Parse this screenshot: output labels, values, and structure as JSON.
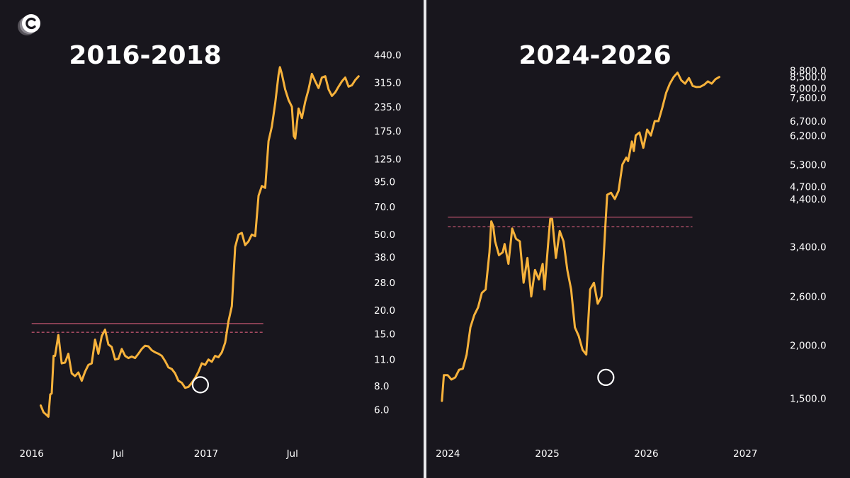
{
  "colors": {
    "background": "#18161d",
    "line": "#f7b23b",
    "resistance": "#d65d7a",
    "marker": "#ffffff"
  },
  "logo": {
    "icon": "c-logo-icon"
  },
  "chart_data": [
    {
      "type": "line",
      "title": "2016-2018",
      "y_scale": "log",
      "ylim": [
        5.2,
        470
      ],
      "y_ticks": [
        {
          "v": 440,
          "label": "440.0"
        },
        {
          "v": 315,
          "label": "315.0"
        },
        {
          "v": 235,
          "label": "235.0"
        },
        {
          "v": 175,
          "label": "175.0"
        },
        {
          "v": 125,
          "label": "125.0"
        },
        {
          "v": 95,
          "label": "95.0"
        },
        {
          "v": 70,
          "label": "70.0"
        },
        {
          "v": 50,
          "label": "50.0"
        },
        {
          "v": 38,
          "label": "38.0"
        },
        {
          "v": 28,
          "label": "28.0"
        },
        {
          "v": 20,
          "label": "20.0"
        },
        {
          "v": 15,
          "label": "15.0"
        },
        {
          "v": 11,
          "label": "11.0"
        },
        {
          "v": 8,
          "label": "8.0"
        },
        {
          "v": 6,
          "label": "6.0"
        }
      ],
      "xlim": [
        "2015-12-25",
        "2017-11-30"
      ],
      "x_ticks": [
        {
          "x": "2016-01-01",
          "label": "2016"
        },
        {
          "x": "2016-07-01",
          "label": "Jul"
        },
        {
          "x": "2017-01-01",
          "label": "2017"
        },
        {
          "x": "2017-07-01",
          "label": "Jul"
        }
      ],
      "resistance": {
        "solid": 17.0,
        "dashed": 15.3,
        "x_start": "2016-01-01",
        "x_end": "2017-05-01"
      },
      "marker": {
        "x": "2016-12-20",
        "y": 8.1
      },
      "series": [
        {
          "points": [
            [
              "2016-01-20",
              6.3
            ],
            [
              "2016-01-26",
              5.8
            ],
            [
              "2016-02-02",
              5.6
            ],
            [
              "2016-02-05",
              5.5
            ],
            [
              "2016-02-09",
              7.2
            ],
            [
              "2016-02-12",
              7.3
            ],
            [
              "2016-02-16",
              11.5
            ],
            [
              "2016-02-19",
              11.5
            ],
            [
              "2016-02-26",
              14.8
            ],
            [
              "2016-03-04",
              10.5
            ],
            [
              "2016-03-11",
              10.6
            ],
            [
              "2016-03-18",
              11.8
            ],
            [
              "2016-03-25",
              9.3
            ],
            [
              "2016-04-01",
              9.0
            ],
            [
              "2016-04-08",
              9.4
            ],
            [
              "2016-04-15",
              8.5
            ],
            [
              "2016-04-22",
              9.5
            ],
            [
              "2016-04-29",
              10.3
            ],
            [
              "2016-05-06",
              10.5
            ],
            [
              "2016-05-13",
              14.0
            ],
            [
              "2016-05-20",
              11.8
            ],
            [
              "2016-05-27",
              14.6
            ],
            [
              "2016-06-03",
              15.8
            ],
            [
              "2016-06-10",
              13.2
            ],
            [
              "2016-06-17",
              12.8
            ],
            [
              "2016-06-24",
              11.0
            ],
            [
              "2016-07-01",
              11.1
            ],
            [
              "2016-07-08",
              12.5
            ],
            [
              "2016-07-15",
              11.5
            ],
            [
              "2016-07-22",
              11.2
            ],
            [
              "2016-07-29",
              11.4
            ],
            [
              "2016-08-05",
              11.2
            ],
            [
              "2016-08-12",
              11.8
            ],
            [
              "2016-08-19",
              12.5
            ],
            [
              "2016-08-26",
              13.0
            ],
            [
              "2016-09-02",
              12.9
            ],
            [
              "2016-09-09",
              12.3
            ],
            [
              "2016-09-16",
              12.0
            ],
            [
              "2016-09-23",
              11.8
            ],
            [
              "2016-09-30",
              11.5
            ],
            [
              "2016-10-07",
              10.8
            ],
            [
              "2016-10-14",
              10.0
            ],
            [
              "2016-10-21",
              9.8
            ],
            [
              "2016-10-28",
              9.3
            ],
            [
              "2016-11-04",
              8.5
            ],
            [
              "2016-11-11",
              8.3
            ],
            [
              "2016-11-18",
              7.8
            ],
            [
              "2016-11-25",
              7.9
            ],
            [
              "2016-12-02",
              8.3
            ],
            [
              "2016-12-09",
              8.8
            ],
            [
              "2016-12-16",
              9.5
            ],
            [
              "2016-12-23",
              10.5
            ],
            [
              "2016-12-30",
              10.3
            ],
            [
              "2017-01-06",
              11.0
            ],
            [
              "2017-01-13",
              10.7
            ],
            [
              "2017-01-20",
              11.5
            ],
            [
              "2017-01-27",
              11.3
            ],
            [
              "2017-02-03",
              12.0
            ],
            [
              "2017-02-10",
              13.5
            ],
            [
              "2017-02-17",
              17.5
            ],
            [
              "2017-02-24",
              21.0
            ],
            [
              "2017-03-03",
              43.0
            ],
            [
              "2017-03-10",
              50.0
            ],
            [
              "2017-03-17",
              51.0
            ],
            [
              "2017-03-24",
              44.0
            ],
            [
              "2017-03-31",
              46.0
            ],
            [
              "2017-04-07",
              50.0
            ],
            [
              "2017-04-14",
              49.0
            ],
            [
              "2017-04-21",
              80.0
            ],
            [
              "2017-04-28",
              90.0
            ],
            [
              "2017-05-05",
              88.0
            ],
            [
              "2017-05-12",
              155.0
            ],
            [
              "2017-05-19",
              185.0
            ],
            [
              "2017-05-26",
              245.0
            ],
            [
              "2017-06-02",
              345.0
            ],
            [
              "2017-06-05",
              380.0
            ],
            [
              "2017-06-09",
              350.0
            ],
            [
              "2017-06-16",
              290.0
            ],
            [
              "2017-06-23",
              255.0
            ],
            [
              "2017-06-30",
              235.0
            ],
            [
              "2017-07-04",
              165.0
            ],
            [
              "2017-07-07",
              160.0
            ],
            [
              "2017-07-14",
              230.0
            ],
            [
              "2017-07-21",
              205.0
            ],
            [
              "2017-07-28",
              250.0
            ],
            [
              "2017-08-04",
              290.0
            ],
            [
              "2017-08-11",
              350.0
            ],
            [
              "2017-08-18",
              320.0
            ],
            [
              "2017-08-25",
              295.0
            ],
            [
              "2017-09-01",
              335.0
            ],
            [
              "2017-09-08",
              340.0
            ],
            [
              "2017-09-15",
              290.0
            ],
            [
              "2017-09-22",
              268.0
            ],
            [
              "2017-09-29",
              280.0
            ],
            [
              "2017-10-06",
              300.0
            ],
            [
              "2017-10-13",
              320.0
            ],
            [
              "2017-10-20",
              335.0
            ],
            [
              "2017-10-27",
              300.0
            ],
            [
              "2017-11-03",
              305.0
            ],
            [
              "2017-11-10",
              325.0
            ],
            [
              "2017-11-17",
              340.0
            ]
          ]
        }
      ]
    },
    {
      "type": "line",
      "title": "2024-2026",
      "y_scale": "log",
      "ylim": [
        1300,
        9200
      ],
      "y_ticks": [
        {
          "v": 8800,
          "label": "8,800.0"
        },
        {
          "v": 8500,
          "label": "8,500.0"
        },
        {
          "v": 8000,
          "label": "8,000.0"
        },
        {
          "v": 7600,
          "label": "7,600.0"
        },
        {
          "v": 6700,
          "label": "6,700.0"
        },
        {
          "v": 6200,
          "label": "6,200.0"
        },
        {
          "v": 5300,
          "label": "5,300.0"
        },
        {
          "v": 4700,
          "label": "4,700.0"
        },
        {
          "v": 4400,
          "label": "4,400.0"
        },
        {
          "v": 3400,
          "label": "3,400.0"
        },
        {
          "v": 2600,
          "label": "2,600.0"
        },
        {
          "v": 2000,
          "label": "2,000.0"
        },
        {
          "v": 1500,
          "label": "1,500.0"
        }
      ],
      "xlim": [
        "2023-12-05",
        "2027-04-20"
      ],
      "x_ticks": [
        {
          "x": "2024-01-01",
          "label": "2024"
        },
        {
          "x": "2025-01-01",
          "label": "2025"
        },
        {
          "x": "2026-01-01",
          "label": "2026"
        },
        {
          "x": "2027-01-01",
          "label": "2027"
        }
      ],
      "resistance": {
        "solid": 3990,
        "dashed": 3790,
        "x_start": "2024-01-01",
        "x_end": "2026-06-20"
      },
      "marker": {
        "x": "2025-08-05",
        "y": 1680
      },
      "series": [
        {
          "points": [
            [
              "2023-12-10",
              1480
            ],
            [
              "2023-12-17",
              1700
            ],
            [
              "2023-12-31",
              1700
            ],
            [
              "2024-01-14",
              1660
            ],
            [
              "2024-01-28",
              1680
            ],
            [
              "2024-02-11",
              1750
            ],
            [
              "2024-02-25",
              1760
            ],
            [
              "2024-03-10",
              1900
            ],
            [
              "2024-03-24",
              2200
            ],
            [
              "2024-04-07",
              2350
            ],
            [
              "2024-04-21",
              2450
            ],
            [
              "2024-05-05",
              2650
            ],
            [
              "2024-05-19",
              2700
            ],
            [
              "2024-06-02",
              3300
            ],
            [
              "2024-06-09",
              3900
            ],
            [
              "2024-06-16",
              3800
            ],
            [
              "2024-06-23",
              3500
            ],
            [
              "2024-07-07",
              3250
            ],
            [
              "2024-07-21",
              3300
            ],
            [
              "2024-07-28",
              3450
            ],
            [
              "2024-08-11",
              3100
            ],
            [
              "2024-08-25",
              3750
            ],
            [
              "2024-09-08",
              3550
            ],
            [
              "2024-09-22",
              3500
            ],
            [
              "2024-10-06",
              2800
            ],
            [
              "2024-10-20",
              3200
            ],
            [
              "2024-11-03",
              2600
            ],
            [
              "2024-11-17",
              3000
            ],
            [
              "2024-12-01",
              2850
            ],
            [
              "2024-12-15",
              3100
            ],
            [
              "2024-12-22",
              2700
            ],
            [
              "2025-01-05",
              3500
            ],
            [
              "2025-01-12",
              3950
            ],
            [
              "2025-01-19",
              3950
            ],
            [
              "2025-02-02",
              3200
            ],
            [
              "2025-02-16",
              3700
            ],
            [
              "2025-03-02",
              3500
            ],
            [
              "2025-03-16",
              3000
            ],
            [
              "2025-03-30",
              2700
            ],
            [
              "2025-04-13",
              2200
            ],
            [
              "2025-04-27",
              2100
            ],
            [
              "2025-05-11",
              1950
            ],
            [
              "2025-05-25",
              1900
            ],
            [
              "2025-06-08",
              2700
            ],
            [
              "2025-06-22",
              2800
            ],
            [
              "2025-07-06",
              2500
            ],
            [
              "2025-07-20",
              2600
            ],
            [
              "2025-08-03",
              3800
            ],
            [
              "2025-08-10",
              4500
            ],
            [
              "2025-08-24",
              4550
            ],
            [
              "2025-09-07",
              4400
            ],
            [
              "2025-09-21",
              4600
            ],
            [
              "2025-10-05",
              5300
            ],
            [
              "2025-10-19",
              5500
            ],
            [
              "2025-10-26",
              5400
            ],
            [
              "2025-11-09",
              6000
            ],
            [
              "2025-11-16",
              5700
            ],
            [
              "2025-11-23",
              6200
            ],
            [
              "2025-12-07",
              6300
            ],
            [
              "2025-12-21",
              5800
            ],
            [
              "2026-01-04",
              6400
            ],
            [
              "2026-01-18",
              6200
            ],
            [
              "2026-02-01",
              6700
            ],
            [
              "2026-02-15",
              6700
            ],
            [
              "2026-03-01",
              7200
            ],
            [
              "2026-03-15",
              7800
            ],
            [
              "2026-03-29",
              8200
            ],
            [
              "2026-04-12",
              8500
            ],
            [
              "2026-04-26",
              8700
            ],
            [
              "2026-05-10",
              8350
            ],
            [
              "2026-05-24",
              8200
            ],
            [
              "2026-06-07",
              8450
            ],
            [
              "2026-06-21",
              8100
            ],
            [
              "2026-07-05",
              8050
            ],
            [
              "2026-07-19",
              8060
            ],
            [
              "2026-08-02",
              8150
            ],
            [
              "2026-08-16",
              8300
            ],
            [
              "2026-08-30",
              8200
            ],
            [
              "2026-09-13",
              8400
            ],
            [
              "2026-09-27",
              8500
            ]
          ]
        }
      ]
    }
  ]
}
